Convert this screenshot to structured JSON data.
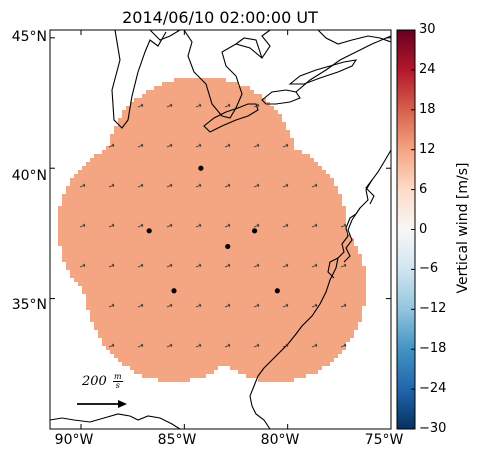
{
  "title": "2014/06/10 02:00:00 UT",
  "colorbar": {
    "label": "Vertical wind [m/s]",
    "min": -30,
    "max": 30,
    "ticks": [
      "30",
      "24",
      "18",
      "12",
      "6",
      "0",
      "−6",
      "−12",
      "−18",
      "−24",
      "−30"
    ],
    "colors": [
      "#053061",
      "#2166ac",
      "#4393c3",
      "#92c5de",
      "#d1e5f0",
      "#f7f7f7",
      "#fddbc7",
      "#f4a582",
      "#d6604d",
      "#b2182b",
      "#67001f"
    ]
  },
  "chart_data": {
    "type": "heatmap",
    "title": "2014/06/10 02:00:00 UT",
    "lon_range": [
      -91.5,
      -75.0
    ],
    "lat_range": [
      30.0,
      45.3
    ],
    "xticks": [
      "90°W",
      "85°W",
      "80°W",
      "75°W"
    ],
    "xtick_values": [
      -90,
      -85,
      -80,
      -75
    ],
    "yticks": [
      "45°N",
      "40°N",
      "35°N"
    ],
    "ytick_values": [
      45,
      40,
      35
    ],
    "field_value_ms": 12,
    "field_color": "#f4a582",
    "radar_sites": [
      {
        "lon": -84.2,
        "lat": 40.0
      },
      {
        "lon": -86.7,
        "lat": 37.6
      },
      {
        "lon": -81.6,
        "lat": 37.6
      },
      {
        "lon": -82.9,
        "lat": 37.0
      },
      {
        "lon": -85.5,
        "lat": 35.3
      },
      {
        "lon": -80.5,
        "lat": 35.3
      }
    ],
    "coverage_radius_deg": 3.5,
    "reference_vector": {
      "label": "200",
      "unit_num": "m",
      "unit_den": "s"
    }
  }
}
